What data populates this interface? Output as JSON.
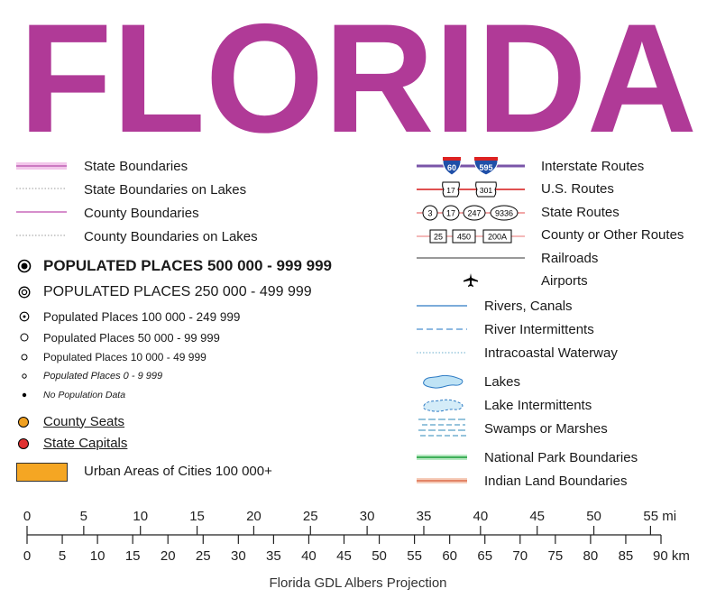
{
  "title": "FLORIDA",
  "colors": {
    "title": "#b03a97",
    "state_boundary": "#d98ccd",
    "county_boundary": "#c060b4",
    "interstate_line": "#7a55a8",
    "us_route_line": "#e05050",
    "county_seat": "#f0a020",
    "state_capital": "#e03030",
    "urban_area": "#f5a623",
    "river": "#2e7bc4",
    "lake_fill": "#bfe3f5",
    "park": "#2ea84a",
    "indian_land": "#e07a5a"
  },
  "legend_left": {
    "state_boundaries": "State Boundaries",
    "state_boundaries_lakes": "State Boundaries on Lakes",
    "county_boundaries": "County Boundaries",
    "county_boundaries_lakes": "County Boundaries on Lakes",
    "pp_500k": "POPULATED PLACES 500 000 - 999 999",
    "pp_250k": "POPULATED PLACES 250 000 - 499 999",
    "pp_100k": "Populated Places 100 000 - 249 999",
    "pp_50k": "Populated Places 50 000 - 99 999",
    "pp_10k": "Populated Places 10 000 - 49 999",
    "pp_0": "Populated Places 0 - 9 999",
    "pp_nodata": "No Population Data",
    "county_seats": "County Seats",
    "state_capitals": "State Capitals",
    "urban_areas": "Urban Areas of Cities 100 000+"
  },
  "legend_right": {
    "interstate": "Interstate Routes",
    "interstate_shields": [
      "60",
      "595"
    ],
    "us_routes": "U.S. Routes",
    "us_shields": [
      "17",
      "301"
    ],
    "state_routes": "State Routes",
    "state_shields": [
      "3",
      "17",
      "247",
      "9336"
    ],
    "county_routes": "County or Other Routes",
    "county_shields": [
      "25",
      "450",
      "200A"
    ],
    "railroads": "Railroads",
    "airports": "Airports",
    "rivers": "Rivers, Canals",
    "river_intermittents": "River Intermittents",
    "intracoastal": "Intracoastal Waterway",
    "lakes": "Lakes",
    "lake_intermittents": "Lake Intermittents",
    "swamps": "Swamps or Marshes",
    "national_park": "National Park Boundaries",
    "indian_land": "Indian Land Boundaries"
  },
  "scale": {
    "miles": [
      "0",
      "5",
      "10",
      "15",
      "20",
      "25",
      "30",
      "35",
      "40",
      "45",
      "50",
      "55"
    ],
    "mi_unit": "mi",
    "km": [
      "0",
      "5",
      "10",
      "15",
      "20",
      "25",
      "30",
      "35",
      "40",
      "45",
      "50",
      "55",
      "60",
      "65",
      "70",
      "75",
      "80",
      "85",
      "90"
    ],
    "km_unit": "km",
    "projection": "Florida GDL Albers Projection"
  }
}
